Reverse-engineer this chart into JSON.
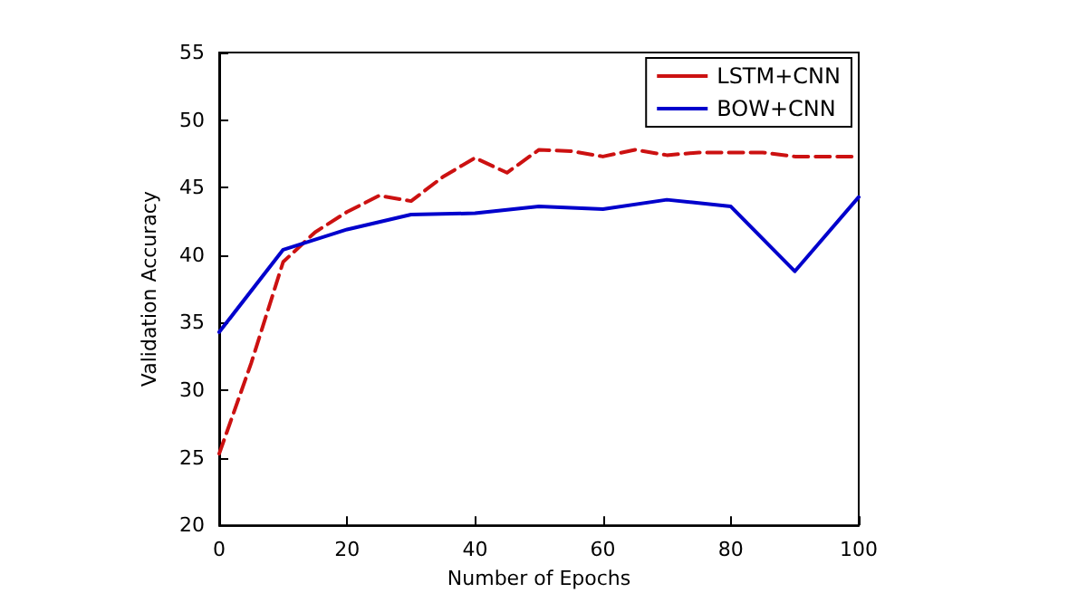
{
  "chart_data": {
    "type": "line",
    "xlabel": "Number of Epochs",
    "ylabel": "Validation Accuracy",
    "xlim": [
      0,
      100
    ],
    "xticks": [
      0,
      20,
      40,
      60,
      80,
      100
    ],
    "ylim": [
      20,
      55
    ],
    "yticks": [
      20,
      25,
      30,
      35,
      40,
      45,
      50,
      55
    ],
    "legend": "top right",
    "grid": false,
    "marker": "none",
    "series": [
      {
        "name": "LSTM+CNN",
        "color": "#cc1111",
        "line_style": "dashed",
        "x": [
          0,
          5,
          10,
          15,
          20,
          25,
          30,
          35,
          40,
          45,
          50,
          55,
          60,
          65,
          70,
          75,
          80,
          85,
          90,
          95,
          100
        ],
        "values": [
          25.3,
          32,
          39.5,
          41.7,
          43.2,
          44.4,
          44,
          45.8,
          47.2,
          46.1,
          47.8,
          47.7,
          47.3,
          47.8,
          47.4,
          47.6,
          47.6,
          47.6,
          47.3,
          47.3,
          47.3
        ]
      },
      {
        "name": "BOW+CNN",
        "color": "#0000cc",
        "line_style": "solid",
        "x": [
          0,
          10,
          20,
          30,
          40,
          50,
          60,
          70,
          80,
          90,
          100
        ],
        "values": [
          34.3,
          40.4,
          41.9,
          43,
          43.1,
          43.6,
          43.4,
          44.1,
          43.6,
          38.8,
          44.3
        ]
      }
    ]
  }
}
